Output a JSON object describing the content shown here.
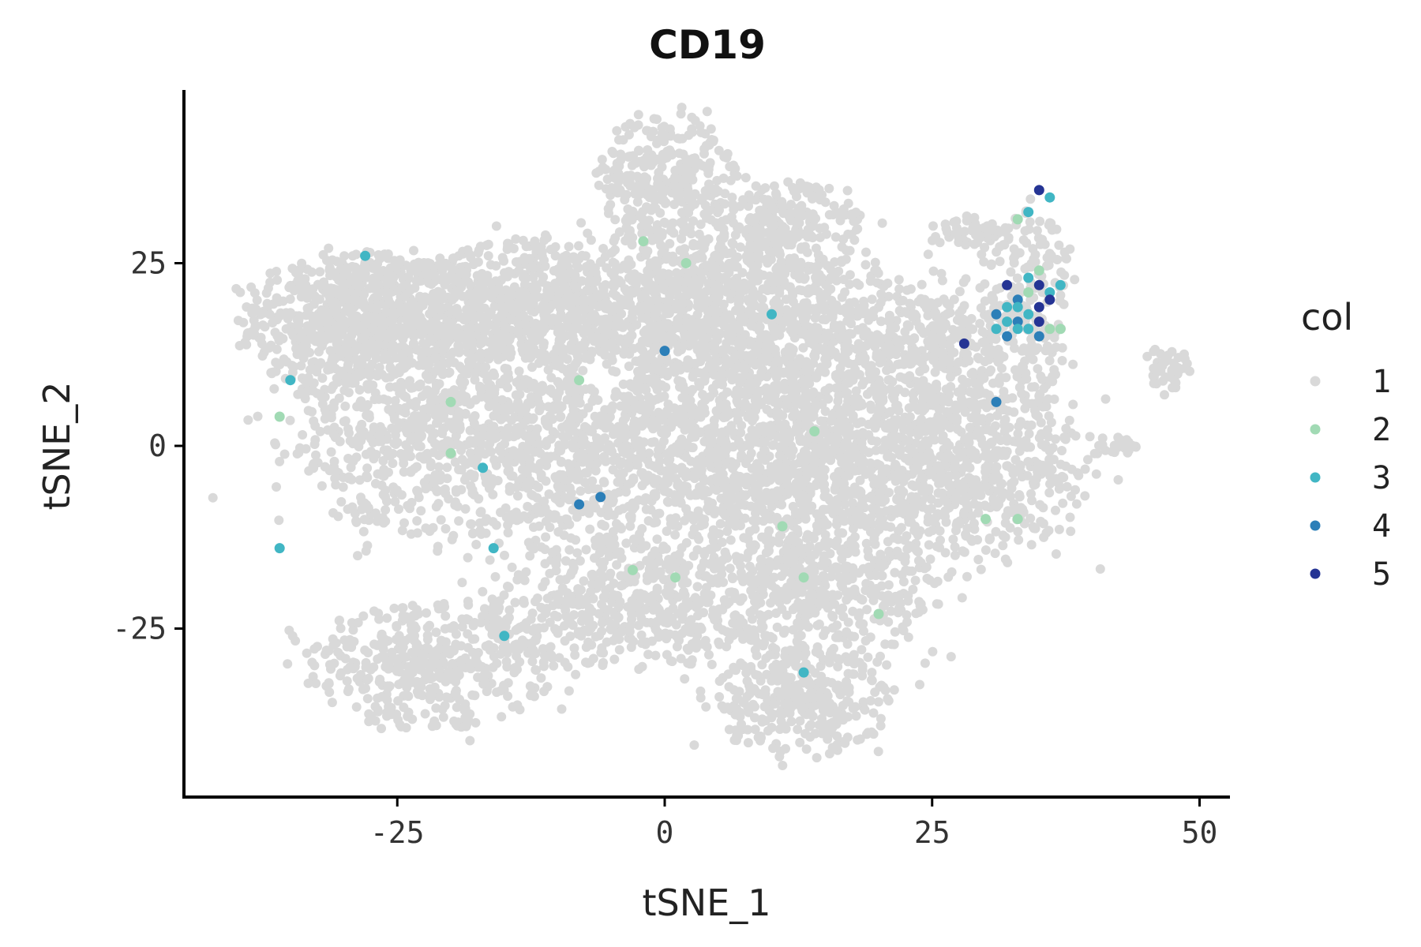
{
  "chart_data": {
    "type": "scatter",
    "title": "CD19",
    "xlabel": "tSNE_1",
    "ylabel": "tSNE_2",
    "xlim": [
      -45,
      53
    ],
    "ylim": [
      -48,
      49
    ],
    "x_ticks": [
      -25,
      0,
      25,
      50
    ],
    "y_ticks": [
      -25,
      0,
      25
    ],
    "grid": false,
    "legend": {
      "title": "col",
      "placement": "right",
      "entries": [
        {
          "label": "1",
          "color": "#d9d9d9"
        },
        {
          "label": "2",
          "color": "#a1dab4"
        },
        {
          "label": "3",
          "color": "#41b6c4"
        },
        {
          "label": "4",
          "color": "#2c7fb8"
        },
        {
          "label": "5",
          "color": "#253494"
        }
      ]
    },
    "background_clusters": [
      {
        "cx": -31,
        "cy": 17,
        "rx": 8,
        "ry": 9,
        "n": 450
      },
      {
        "cx": -23,
        "cy": 18,
        "rx": 10,
        "ry": 8,
        "n": 450
      },
      {
        "cx": -12,
        "cy": 20,
        "rx": 10,
        "ry": 8,
        "n": 500
      },
      {
        "cx": 0,
        "cy": 37,
        "rx": 6,
        "ry": 8,
        "n": 300
      },
      {
        "cx": 2,
        "cy": 20,
        "rx": 10,
        "ry": 10,
        "n": 650
      },
      {
        "cx": 11,
        "cy": 30,
        "rx": 7,
        "ry": 6,
        "n": 250
      },
      {
        "cx": 15,
        "cy": 15,
        "rx": 12,
        "ry": 9,
        "n": 550
      },
      {
        "cx": 29,
        "cy": 13,
        "rx": 8,
        "ry": 8,
        "n": 300
      },
      {
        "cx": -20,
        "cy": 2,
        "rx": 14,
        "ry": 14,
        "n": 900
      },
      {
        "cx": 0,
        "cy": 0,
        "rx": 14,
        "ry": 17,
        "n": 1100
      },
      {
        "cx": 17,
        "cy": -3,
        "rx": 13,
        "ry": 14,
        "n": 900
      },
      {
        "cx": 30,
        "cy": -3,
        "rx": 9,
        "ry": 11,
        "n": 450
      },
      {
        "cx": -4,
        "cy": -22,
        "rx": 12,
        "ry": 8,
        "n": 450
      },
      {
        "cx": 15,
        "cy": -20,
        "rx": 11,
        "ry": 8,
        "n": 400
      },
      {
        "cx": -22,
        "cy": -30,
        "rx": 11,
        "ry": 8,
        "n": 450
      },
      {
        "cx": 13,
        "cy": -35,
        "rx": 8,
        "ry": 7,
        "n": 350
      },
      {
        "cx": 29,
        "cy": 29,
        "rx": 4,
        "ry": 2,
        "n": 50
      },
      {
        "cx": 34,
        "cy": 23,
        "rx": 4,
        "ry": 9,
        "n": 120
      },
      {
        "cx": 47,
        "cy": 11,
        "rx": 2,
        "ry": 3,
        "n": 45
      },
      {
        "cx": 42,
        "cy": 0,
        "rx": 3,
        "ry": 1.2,
        "n": 25
      }
    ],
    "highlight_points": [
      {
        "x": -28,
        "y": 26,
        "level": 3
      },
      {
        "x": -35,
        "y": 9,
        "level": 3
      },
      {
        "x": -36,
        "y": 4,
        "level": 2
      },
      {
        "x": -36,
        "y": -14,
        "level": 3
      },
      {
        "x": -17,
        "y": -3,
        "level": 3
      },
      {
        "x": -16,
        "y": -14,
        "level": 3
      },
      {
        "x": -15,
        "y": -26,
        "level": 3
      },
      {
        "x": -20,
        "y": -1,
        "level": 2
      },
      {
        "x": -20,
        "y": 6,
        "level": 2
      },
      {
        "x": -8,
        "y": -8,
        "level": 4
      },
      {
        "x": -6,
        "y": -7,
        "level": 4
      },
      {
        "x": 0,
        "y": 13,
        "level": 4
      },
      {
        "x": -8,
        "y": 9,
        "level": 2
      },
      {
        "x": -2,
        "y": 28,
        "level": 2
      },
      {
        "x": 2,
        "y": 25,
        "level": 2
      },
      {
        "x": 10,
        "y": 18,
        "level": 3
      },
      {
        "x": -3,
        "y": -17,
        "level": 2
      },
      {
        "x": 1,
        "y": -18,
        "level": 2
      },
      {
        "x": 11,
        "y": -11,
        "level": 2
      },
      {
        "x": 13,
        "y": -18,
        "level": 2
      },
      {
        "x": 13,
        "y": -31,
        "level": 3
      },
      {
        "x": 20,
        "y": -23,
        "level": 2
      },
      {
        "x": 14,
        "y": 2,
        "level": 2
      },
      {
        "x": 28,
        "y": 14,
        "level": 5
      },
      {
        "x": 31,
        "y": 6,
        "level": 4
      },
      {
        "x": 30,
        "y": -10,
        "level": 2
      },
      {
        "x": 33,
        "y": -10,
        "level": 2
      },
      {
        "x": 34,
        "y": 32,
        "level": 3
      },
      {
        "x": 35,
        "y": 35,
        "level": 5
      },
      {
        "x": 36,
        "y": 34,
        "level": 3
      },
      {
        "x": 33,
        "y": 31,
        "level": 2
      },
      {
        "x": 32,
        "y": 22,
        "level": 5
      },
      {
        "x": 33,
        "y": 20,
        "level": 4
      },
      {
        "x": 34,
        "y": 23,
        "level": 3
      },
      {
        "x": 35,
        "y": 22,
        "level": 5
      },
      {
        "x": 36,
        "y": 21,
        "level": 3
      },
      {
        "x": 37,
        "y": 22,
        "level": 3
      },
      {
        "x": 35,
        "y": 19,
        "level": 5
      },
      {
        "x": 34,
        "y": 18,
        "level": 3
      },
      {
        "x": 33,
        "y": 17,
        "level": 4
      },
      {
        "x": 32,
        "y": 17,
        "level": 3
      },
      {
        "x": 31,
        "y": 16,
        "level": 3
      },
      {
        "x": 32,
        "y": 15,
        "level": 4
      },
      {
        "x": 34,
        "y": 16,
        "level": 3
      },
      {
        "x": 35,
        "y": 17,
        "level": 5
      },
      {
        "x": 36,
        "y": 16,
        "level": 2
      },
      {
        "x": 33,
        "y": 19,
        "level": 3
      },
      {
        "x": 34,
        "y": 21,
        "level": 2
      },
      {
        "x": 36,
        "y": 20,
        "level": 5
      },
      {
        "x": 31,
        "y": 18,
        "level": 4
      },
      {
        "x": 35,
        "y": 24,
        "level": 2
      },
      {
        "x": 33,
        "y": 16,
        "level": 3
      },
      {
        "x": 35,
        "y": 15,
        "level": 4
      },
      {
        "x": 32,
        "y": 19,
        "level": 3
      },
      {
        "x": 37,
        "y": 16,
        "level": 2
      }
    ]
  }
}
